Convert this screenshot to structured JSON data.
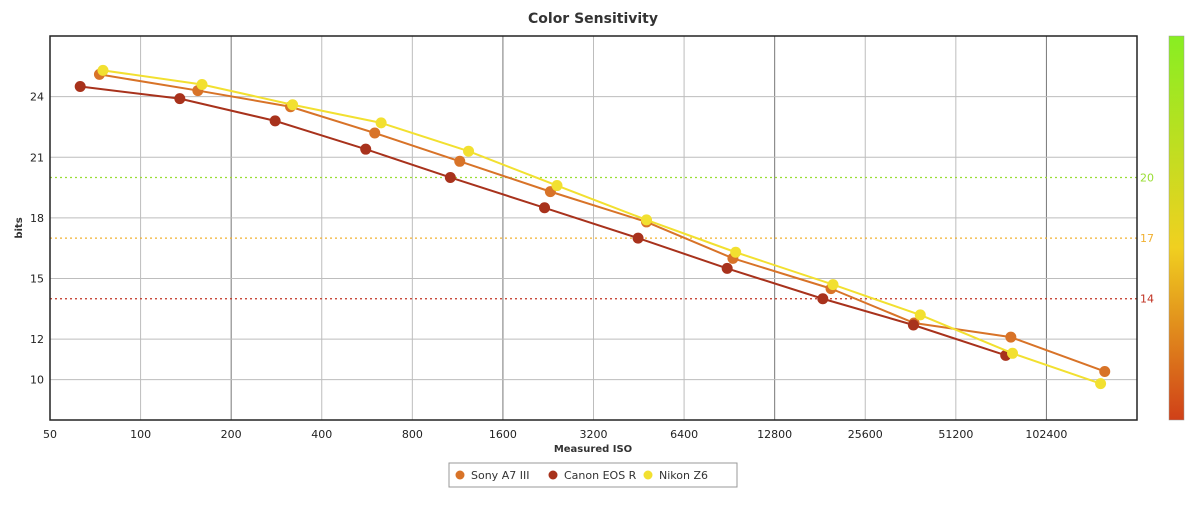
{
  "chart_data": {
    "type": "line",
    "title": "Color Sensitivity",
    "xlabel": "Measured ISO",
    "ylabel": "bits",
    "x_scale": "log2",
    "xlim": [
      50,
      204800
    ],
    "ylim": [
      8,
      27
    ],
    "x_ticks": [
      50,
      100,
      200,
      400,
      800,
      1600,
      3200,
      6400,
      12800,
      25600,
      51200,
      102400
    ],
    "y_ticks": [
      10,
      12,
      15,
      18,
      21,
      24
    ],
    "grid": true,
    "legend_position": "bottom-center",
    "reference_lines": [
      {
        "value": 20,
        "label": "20",
        "color": "#99dd33"
      },
      {
        "value": 17,
        "label": "17",
        "color": "#f0b030"
      },
      {
        "value": 14,
        "label": "14",
        "color": "#c03020"
      }
    ],
    "color_scale": {
      "top": "#88ee22",
      "middle": "#f0d020",
      "bottom": "#d04018"
    },
    "series": [
      {
        "name": "Sony A7 III",
        "color": "#d87328",
        "x": [
          73,
          155,
          315,
          600,
          1150,
          2300,
          4800,
          9300,
          19700,
          37200,
          78000,
          160000
        ],
        "y": [
          25.1,
          24.3,
          23.5,
          22.2,
          20.8,
          19.3,
          17.8,
          16.0,
          14.5,
          12.8,
          12.1,
          10.4
        ]
      },
      {
        "name": "Canon EOS R",
        "color": "#a8321c",
        "x": [
          63,
          135,
          280,
          560,
          1070,
          2200,
          4500,
          8900,
          18500,
          37000,
          75000
        ],
        "y": [
          24.5,
          23.9,
          22.8,
          21.4,
          20.0,
          18.5,
          17.0,
          15.5,
          14.0,
          12.7,
          11.2
        ]
      },
      {
        "name": "Nikon Z6",
        "color": "#f2e030",
        "x": [
          75,
          160,
          320,
          630,
          1230,
          2420,
          4800,
          9500,
          20000,
          39000,
          79000,
          155000
        ],
        "y": [
          25.3,
          24.6,
          23.6,
          22.7,
          21.3,
          19.6,
          17.9,
          16.3,
          14.7,
          13.2,
          11.3,
          9.8
        ]
      }
    ]
  }
}
